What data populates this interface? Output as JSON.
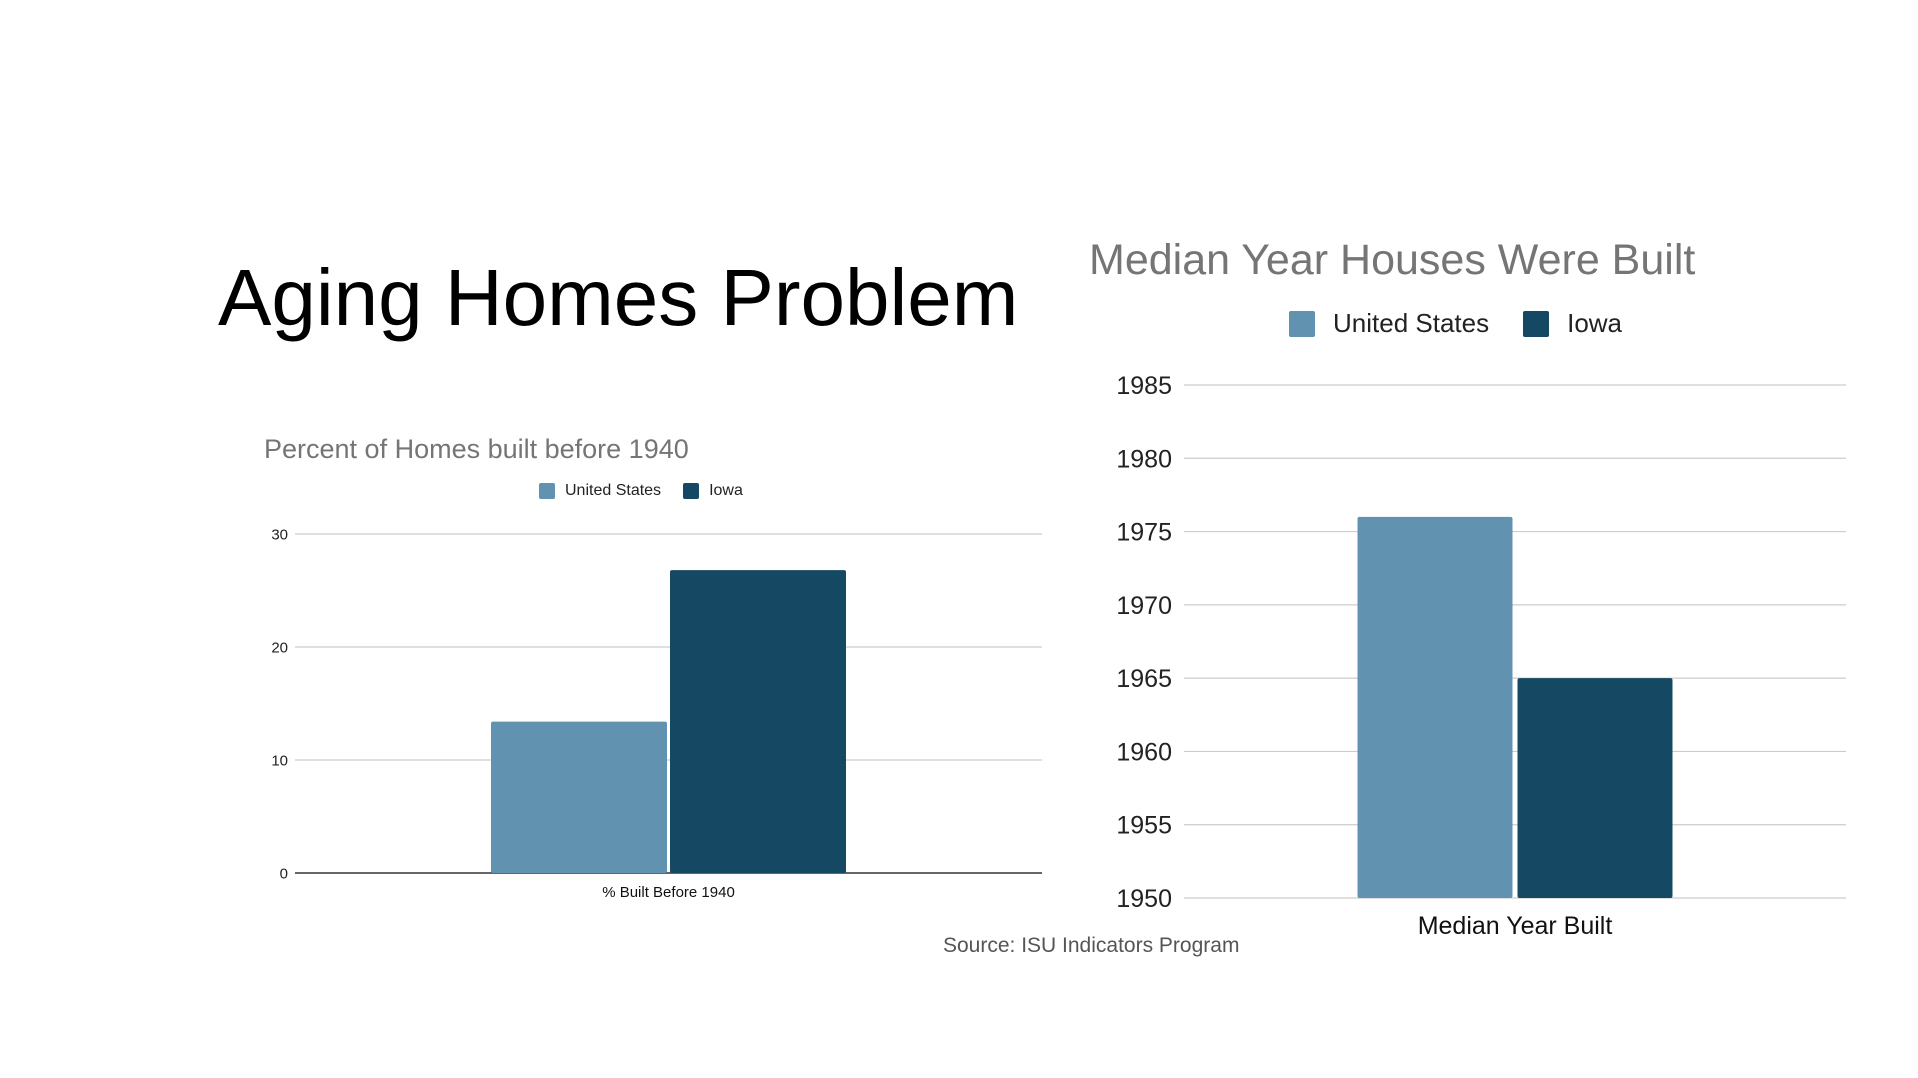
{
  "slide": {
    "title": "Aging Homes Problem",
    "source": "Source: ISU Indicators Program"
  },
  "colors": {
    "united_states": "#6192b0",
    "iowa": "#154862",
    "grid": "#cccccc",
    "axis": "#333333",
    "title": "#757575"
  },
  "chart_data": [
    {
      "type": "bar",
      "title": "Percent of Homes built before 1940",
      "categories": [
        "% Built Before 1940"
      ],
      "series": [
        {
          "name": "United States",
          "values": [
            13.4
          ]
        },
        {
          "name": "Iowa",
          "values": [
            26.8
          ]
        }
      ],
      "ylim": [
        0,
        30
      ],
      "yticks": [
        "0",
        "10",
        "20",
        "30"
      ],
      "xlabel": "",
      "ylabel": "",
      "grid": true,
      "legend": "top-center"
    },
    {
      "type": "bar",
      "title": "Median Year Houses Were Built",
      "categories": [
        "Median Year Built"
      ],
      "series": [
        {
          "name": "United States",
          "values": [
            1976
          ]
        },
        {
          "name": "Iowa",
          "values": [
            1965
          ]
        }
      ],
      "ylim": [
        1950,
        1985
      ],
      "yticks": [
        "1950",
        "1955",
        "1960",
        "1965",
        "1970",
        "1975",
        "1980",
        "1985"
      ],
      "xlabel": "",
      "ylabel": "",
      "grid": true,
      "legend": "top-center"
    }
  ]
}
